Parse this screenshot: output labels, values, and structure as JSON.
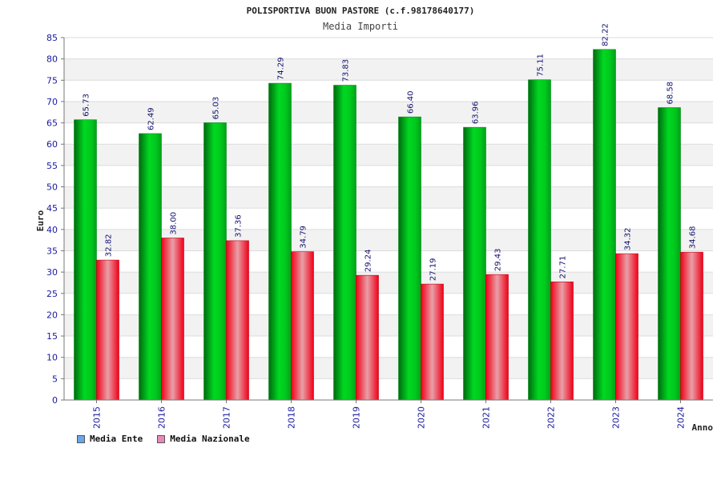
{
  "chart_data": {
    "type": "bar",
    "title": "POLISPORTIVA BUON PASTORE (c.f.98178640177)",
    "subtitle": "Media Importi",
    "xlabel": "Anno",
    "ylabel": "Euro",
    "ylim": [
      0,
      85
    ],
    "yticks": [
      0,
      5,
      10,
      15,
      20,
      25,
      30,
      35,
      40,
      45,
      50,
      55,
      60,
      65,
      70,
      75,
      80,
      85
    ],
    "grid": true,
    "legend_position": "bottom-left",
    "categories": [
      "2015",
      "2016",
      "2017",
      "2018",
      "2019",
      "2020",
      "2021",
      "2022",
      "2023",
      "2024"
    ],
    "series": [
      {
        "name": "Media Ente",
        "values": [
          65.73,
          62.49,
          65.03,
          74.29,
          73.83,
          66.4,
          63.96,
          75.11,
          82.22,
          68.58
        ],
        "labels": [
          "65.73",
          "62.49",
          "65.03",
          "74.29",
          "73.83",
          "66.40",
          "63.96",
          "75.11",
          "82.22",
          "68.58"
        ],
        "color": "#00c81e",
        "legend_color": "#6aa6e8"
      },
      {
        "name": "Media Nazionale",
        "values": [
          32.82,
          38.0,
          37.36,
          34.79,
          29.24,
          27.19,
          29.43,
          27.71,
          34.32,
          34.68
        ],
        "labels": [
          "32.82",
          "38.00",
          "37.36",
          "34.79",
          "29.24",
          "27.19",
          "29.43",
          "27.71",
          "34.32",
          "34.68"
        ],
        "color": "#f01428",
        "legend_color": "#e58ab8"
      }
    ]
  }
}
